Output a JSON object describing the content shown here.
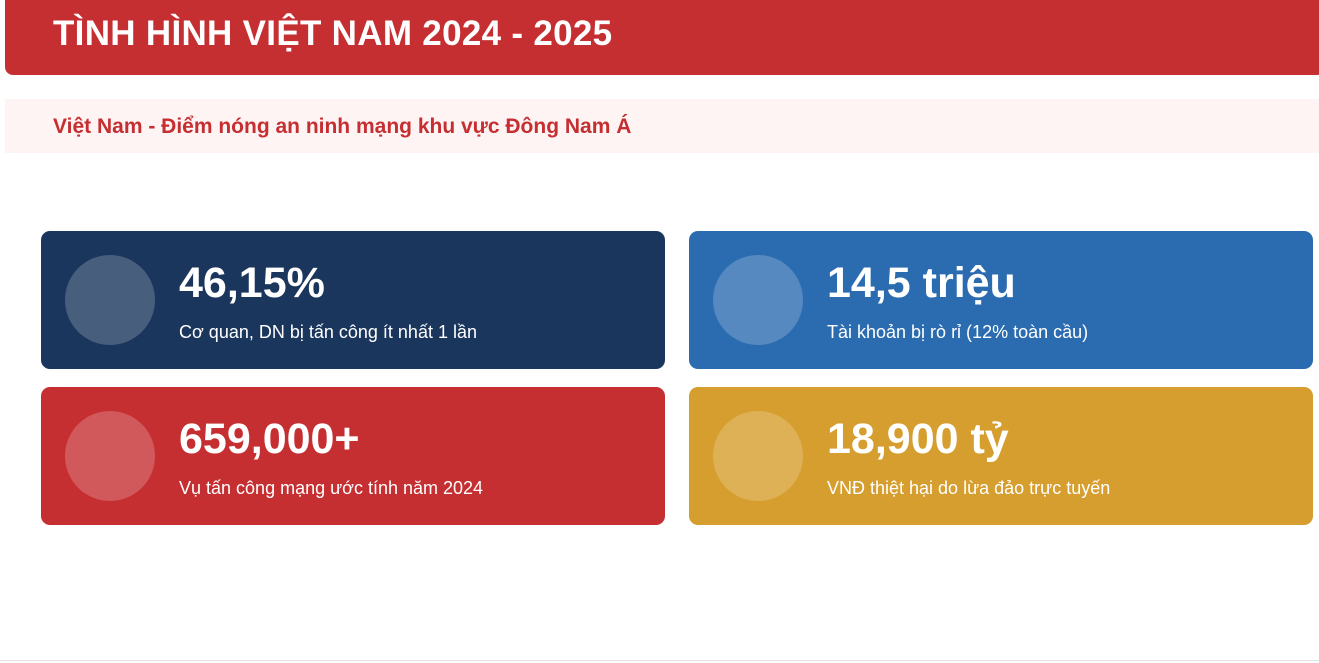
{
  "header": {
    "title": "TÌNH HÌNH VIỆT NAM 2024 - 2025"
  },
  "subtitle": "Việt Nam - Điểm nóng an ninh mạng khu vực Đông Nam Á",
  "stats": [
    {
      "value": "46,15%",
      "label": "Cơ quan, DN bị tấn công ít nhất 1 lần",
      "color": "#1b365d"
    },
    {
      "value": "14,5 triệu",
      "label": "Tài khoản bị rò rỉ (12% toàn cầu)",
      "color": "#2b6cb0"
    },
    {
      "value": "659,000+",
      "label": "Vụ tấn công mạng ước tính năm 2024",
      "color": "#c62f32"
    },
    {
      "value": "18,900 tỷ",
      "label": "VNĐ thiệt hại do lừa đảo trực tuyến",
      "color": "#d69e2e"
    }
  ]
}
